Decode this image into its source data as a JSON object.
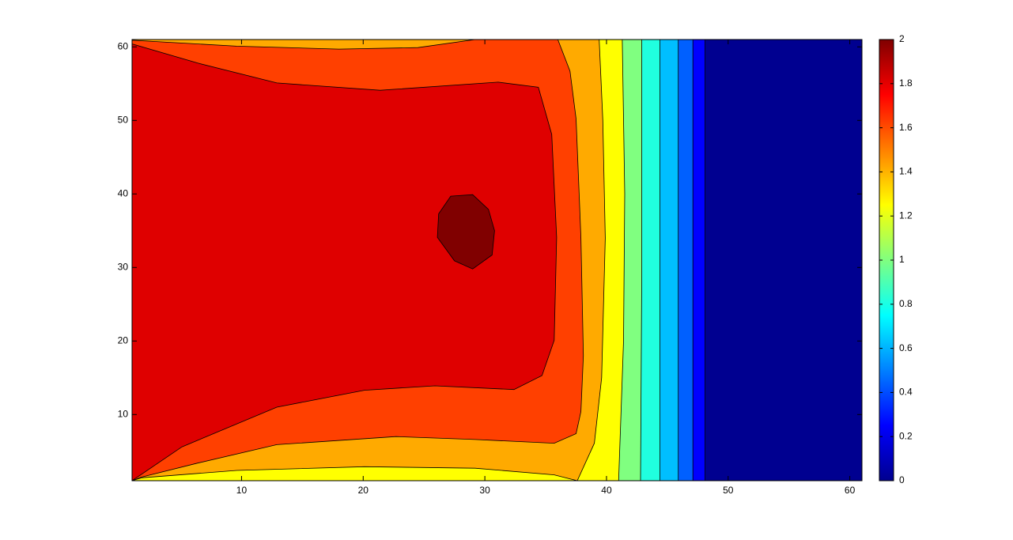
{
  "chart_data": {
    "type": "contour",
    "xlim": [
      1,
      61
    ],
    "ylim": [
      1,
      61
    ],
    "xticks": [
      10,
      20,
      30,
      40,
      50,
      60
    ],
    "yticks": [
      10,
      20,
      30,
      40,
      50,
      60
    ],
    "line_color": "#000000",
    "regions": [
      {
        "color": "#000090",
        "x": [
          1,
          61,
          61,
          1
        ],
        "y": [
          1,
          1,
          61,
          61
        ]
      },
      {
        "color": "#0000ff",
        "x": [
          1,
          48.1,
          48.1,
          1
        ],
        "y": [
          1,
          1,
          61,
          61
        ]
      },
      {
        "color": "#0060ff",
        "x": [
          1,
          47.1,
          47.1,
          1
        ],
        "y": [
          1,
          1,
          61,
          61
        ]
      },
      {
        "color": "#00bfff",
        "x": [
          1,
          45.9,
          45.9,
          1
        ],
        "y": [
          1,
          1,
          61,
          61
        ]
      },
      {
        "color": "#20ffdf",
        "x": [
          1,
          44.4,
          44.4,
          1
        ],
        "y": [
          1,
          1,
          61,
          61
        ]
      },
      {
        "color": "#80ff80",
        "x": [
          1,
          42.8,
          42.9,
          42.9,
          1
        ],
        "y": [
          1,
          1,
          30,
          61,
          61
        ]
      },
      {
        "color": "#ffff00",
        "x": [
          1,
          41.0,
          41.4,
          41.5,
          41.3,
          1
        ],
        "y": [
          1,
          1,
          20,
          40,
          61,
          61
        ]
      },
      {
        "color": "#ffaa00",
        "x": [
          1,
          1.8,
          9.6,
          20.1,
          29.2,
          35.7,
          37.6,
          39.0,
          39.6,
          39.9,
          39.7,
          39.4,
          1
        ],
        "y": [
          1,
          1.4,
          2.4,
          2.9,
          2.7,
          1.8,
          1,
          6.1,
          15,
          34,
          50,
          61,
          61
        ]
      },
      {
        "color": "#ff4000",
        "x": [
          1,
          1.8,
          6.4,
          12.9,
          22.7,
          29.2,
          35.7,
          37.5,
          37.9,
          38.1,
          37.9,
          37.5,
          37.0,
          36.0,
          29.2,
          24.5,
          18.0,
          9.6,
          1
        ],
        "y": [
          1,
          1.5,
          3.4,
          5.9,
          7.0,
          6.6,
          6.1,
          7.4,
          10.4,
          18.0,
          34.1,
          50.2,
          56.7,
          61,
          61,
          59.9,
          59.7,
          60.1,
          60.9
        ]
      },
      {
        "color": "#df0000",
        "x": [
          1,
          5.1,
          12.9,
          20.1,
          25.9,
          32.4,
          34.7,
          35.7,
          35.9,
          35.5,
          34.4,
          31.1,
          21.4,
          12.9,
          6.4,
          1
        ],
        "y": [
          1,
          5.6,
          11.0,
          13.3,
          13.9,
          13.4,
          15.3,
          20.1,
          34.1,
          48.1,
          54.5,
          55.2,
          54.1,
          55.1,
          57.8,
          60.4
        ]
      },
      {
        "color": "#800000",
        "x": [
          27.2,
          29.0,
          30.3,
          30.8,
          30.6,
          29.0,
          27.5,
          26.1,
          26.2
        ],
        "y": [
          39.7,
          39.9,
          37.9,
          35.0,
          31.7,
          29.8,
          30.9,
          34.1,
          37.3
        ]
      }
    ],
    "colorbar": {
      "clim": [
        0,
        2
      ],
      "ticks": [
        0,
        0.2,
        0.4,
        0.6,
        0.8,
        1,
        1.2,
        1.4,
        1.6,
        1.8,
        2
      ],
      "colormap": [
        "#00008f",
        "#0000ff",
        "#0080ff",
        "#00ffff",
        "#80ff80",
        "#ffff00",
        "#ff8000",
        "#ff0000",
        "#800000"
      ]
    }
  }
}
